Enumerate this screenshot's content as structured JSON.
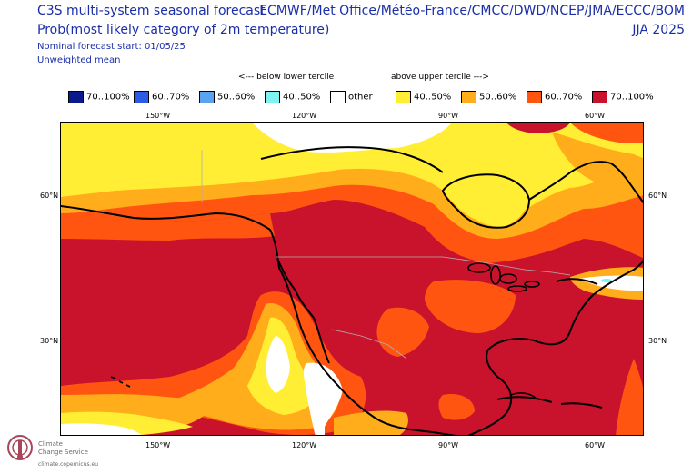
{
  "header": {
    "title_line1": "C3S multi-system seasonal forecast",
    "title_line2": "Prob(most likely category of 2m temperature)",
    "forecast_start": "Nominal forecast start: 01/05/25",
    "mean_type": "Unweighted mean",
    "agencies": "ECMWF/Met Office/Météo-France/CMCC/DWD/NCEP/JMA/ECCC/BOM",
    "season": "JJA 2025"
  },
  "legend": {
    "below_caption": "<--- below lower tercile",
    "above_caption": "above upper tercile --->",
    "items": [
      {
        "label": "70..100%",
        "color": "#0a1a8c"
      },
      {
        "label": "60..70%",
        "color": "#2b5ce6"
      },
      {
        "label": "50..60%",
        "color": "#5aa3f0"
      },
      {
        "label": "40..50%",
        "color": "#7ff2f2"
      },
      {
        "label": "other",
        "color": "#ffffff"
      },
      {
        "label": "40..50%",
        "color": "#ffee33"
      },
      {
        "label": "50..60%",
        "color": "#ffad1a"
      },
      {
        "label": "60..70%",
        "color": "#ff5511"
      },
      {
        "label": "70..100%",
        "color": "#c9132c"
      }
    ]
  },
  "axes": {
    "top_lon_labels": [
      "150°W",
      "120°W",
      "90°W",
      "60°W"
    ],
    "bottom_lon_labels": [
      "150°W",
      "120°W",
      "90°W",
      "60°W"
    ],
    "left_lat_labels": [
      "60°N",
      "30°N"
    ],
    "right_lat_labels": [
      "60°N",
      "30°N"
    ]
  },
  "logo": {
    "line1": "Climate",
    "line2": "Change Service",
    "url": "climate.copernicus.eu"
  }
}
